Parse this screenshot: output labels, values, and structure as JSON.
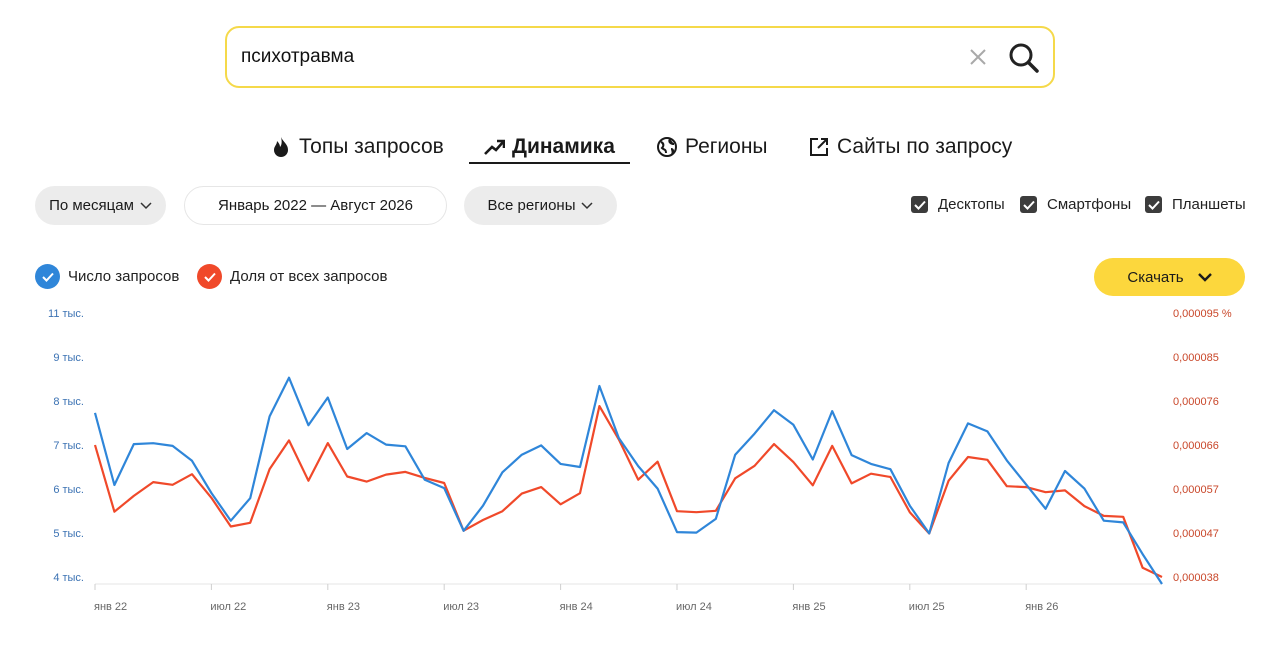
{
  "search": {
    "query": "психотравма",
    "icon_clear": "close-icon",
    "icon_search": "search-icon"
  },
  "tabs": [
    {
      "label": "Топы запросов",
      "icon": "fire-icon",
      "active": false
    },
    {
      "label": "Динамика",
      "icon": "trend-icon",
      "active": true
    },
    {
      "label": "Регионы",
      "icon": "globe-icon",
      "active": false
    },
    {
      "label": "Сайты по запросу",
      "icon": "external-link-icon",
      "active": false
    }
  ],
  "filters": {
    "period": "По месяцам",
    "range": "Январь 2022 — Август 2026",
    "region": "Все регионы"
  },
  "devices": [
    {
      "label": "Десктопы",
      "checked": true
    },
    {
      "label": "Смартфоны",
      "checked": true
    },
    {
      "label": "Планшеты",
      "checked": true
    }
  ],
  "legend": [
    {
      "label": "Число запросов",
      "color": "#2f86d9"
    },
    {
      "label": "Доля от всех запросов",
      "color": "#f0492a"
    }
  ],
  "download": {
    "label": "Скачать"
  },
  "chart_data": {
    "type": "line",
    "title": "",
    "y_left_ticks": [
      "11 тыс.",
      "9 тыс.",
      "8 тыс.",
      "7 тыс.",
      "6 тыс.",
      "5 тыс.",
      "4 тыс."
    ],
    "y_right_ticks": [
      "0,000095 %",
      "0,000085",
      "0,000076",
      "0,000066",
      "0,000057",
      "0,000047",
      "0,000038"
    ],
    "x_tick_labels": [
      "янв 22",
      "июл 22",
      "янв 23",
      "июл 23",
      "янв 24",
      "июл 24",
      "янв 25",
      "июл 25",
      "янв 26"
    ],
    "x": [
      "2022-01",
      "2022-02",
      "2022-03",
      "2022-04",
      "2022-05",
      "2022-06",
      "2022-07",
      "2022-08",
      "2022-09",
      "2022-10",
      "2022-11",
      "2022-12",
      "2023-01",
      "2023-02",
      "2023-03",
      "2023-04",
      "2023-05",
      "2023-06",
      "2023-07",
      "2023-08",
      "2023-09",
      "2023-10",
      "2023-11",
      "2023-12",
      "2024-01",
      "2024-02",
      "2024-03",
      "2024-04",
      "2024-05",
      "2024-06",
      "2024-07",
      "2024-08",
      "2024-09",
      "2024-10",
      "2024-11",
      "2024-12",
      "2025-01",
      "2025-02",
      "2025-03",
      "2025-04",
      "2025-05",
      "2025-06",
      "2025-07",
      "2025-08",
      "2025-09",
      "2025-10",
      "2025-11",
      "2025-12",
      "2026-01",
      "2026-02",
      "2026-03",
      "2026-04",
      "2026-05",
      "2026-06",
      "2026-07",
      "2026-08"
    ],
    "series": [
      {
        "name": "Число запросов",
        "axis": "left",
        "color": "#2f86d9",
        "values": [
          7.73,
          6.09,
          7.02,
          7.04,
          6.98,
          6.64,
          5.91,
          5.28,
          5.79,
          7.65,
          8.53,
          7.45,
          8.08,
          6.91,
          7.27,
          7.01,
          6.97,
          6.21,
          6.02,
          5.05,
          5.62,
          6.38,
          6.78,
          6.99,
          6.57,
          6.5,
          8.34,
          7.16,
          6.52,
          6.01,
          5.02,
          5.01,
          5.32,
          6.78,
          7.26,
          7.79,
          7.46,
          6.67,
          7.77,
          6.77,
          6.57,
          6.45,
          5.62,
          4.99,
          6.59,
          7.49,
          7.31,
          6.65,
          6.1,
          5.55,
          6.41,
          6.01,
          5.28,
          5.24,
          4.52,
          3.2
        ]
      },
      {
        "name": "Доля от всех запросов",
        "axis": "right",
        "color": "#f0492a",
        "values": [
          6.65e-05,
          5.21e-05,
          5.55e-05,
          5.85e-05,
          5.79e-05,
          6.02e-05,
          5.51e-05,
          4.89e-05,
          4.97e-05,
          6.13e-05,
          6.75e-05,
          5.88e-05,
          6.69e-05,
          5.97e-05,
          5.86e-05,
          6.01e-05,
          6.07e-05,
          5.94e-05,
          5.83e-05,
          4.8e-05,
          5.03e-05,
          5.22e-05,
          5.6e-05,
          5.74e-05,
          5.37e-05,
          5.61e-05,
          7.49e-05,
          6.77e-05,
          5.9e-05,
          6.29e-05,
          5.22e-05,
          5.2e-05,
          5.23e-05,
          5.93e-05,
          6.2e-05,
          6.67e-05,
          6.28e-05,
          5.78e-05,
          6.63e-05,
          5.82e-05,
          6.03e-05,
          5.96e-05,
          5.2e-05,
          4.74e-05,
          5.88e-05,
          6.39e-05,
          6.33e-05,
          5.76e-05,
          5.74e-05,
          5.63e-05,
          5.67e-05,
          5.33e-05,
          5.12e-05,
          5.1e-05,
          4e-05,
          3.8e-05
        ]
      }
    ],
    "y_left_range": [
      4,
      11
    ],
    "y_right_range": [
      3.8e-05,
      9.5e-05
    ],
    "grid": false
  }
}
